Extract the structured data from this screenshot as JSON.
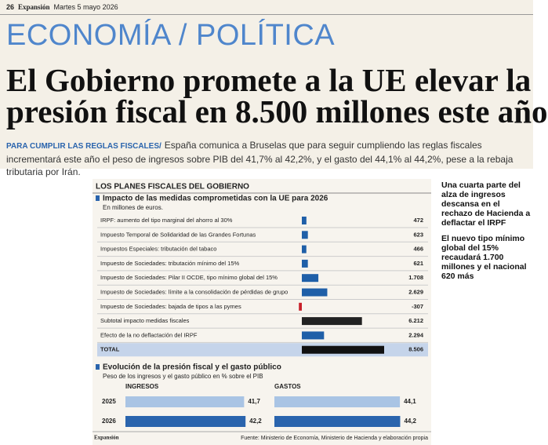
{
  "masthead": {
    "page": "26",
    "paper": "Expansión",
    "date": "Martes 5 mayo 2026"
  },
  "section": "ECONOMÍA / POLÍTICA",
  "headline": [
    "El Gobierno promete a la UE elevar la",
    "presión fiscal en 8.500 millones este año"
  ],
  "subhead": {
    "kicker": "PARA CUMPLIR LAS REGLAS FISCALES/",
    "text": "España comunica a Bruselas que para seguir cumpliendo las reglas fiscales incrementará este año el peso de ingresos sobre PIB del 41,7% al 42,2%, y el gasto del 44,1% al 44,2%, pese a la rebaja tributaria por Irán."
  },
  "graphic": {
    "title": "LOS PLANES FISCALES DEL GOBIERNO",
    "credit": "Expansión",
    "source": "Fuente: Ministerio de Economía, Ministerio de Hacienda y elaboración propia"
  },
  "sidebar": [
    "Una cuarta parte del alza de ingresos descansa en el rechazo de Hacienda a deflactar el IRPF",
    "El nuevo tipo mínimo global del 15% recaudará 1.700 millones y el nacional 620 más"
  ],
  "chart_data": [
    {
      "type": "bar",
      "orientation": "horizontal",
      "title": "Impacto de las medidas comprometidas con la UE para 2026",
      "subtitle": "En millones de euros.",
      "categories": [
        "IRPF: aumento del tipo marginal del ahorro al 30%",
        "Impuesto Temporal de Solidaridad de las Grandes Fortunas",
        "Impuestos Especiales: tributación del tabaco",
        "Impuesto de Sociedades: tributación mínimo del 15%",
        "Impuesto de Sociedades: Pilar II OCDE, tipo mínimo global del 15%",
        "Impuesto de Sociedades: límite a la consolidación de pérdidas de grupo",
        "Impuesto de Sociedades: bajada de tipos a las pymes",
        "Subtotal impacto medidas fiscales",
        "Efecto de la no deflactación del IRPF",
        "TOTAL"
      ],
      "values": [
        472,
        623,
        466,
        621,
        1708,
        2629,
        -307,
        6212,
        2294,
        8506
      ],
      "value_labels": [
        "472",
        "623",
        "466",
        "621",
        "1.708",
        "2.629",
        "-307",
        "6.212",
        "2.294",
        "8.506"
      ],
      "colors": [
        "#1f5fa8",
        "#1f5fa8",
        "#1f5fa8",
        "#1f5fa8",
        "#1f5fa8",
        "#1f5fa8",
        "#c8202a",
        "#222222",
        "#1f5fa8",
        "#111111"
      ]
    },
    {
      "type": "bar",
      "orientation": "horizontal",
      "title": "Evolución de la presión fiscal y el gasto público",
      "subtitle": "Peso de los ingresos y el gasto público en % sobre el PIB",
      "categories": [
        "2025",
        "2026"
      ],
      "colors": [
        "#a9c4e4",
        "#2a64ad"
      ],
      "series": [
        {
          "name": "INGRESOS",
          "values": [
            41.7,
            42.2
          ],
          "value_labels": [
            "41,7",
            "42,2"
          ]
        },
        {
          "name": "GASTOS",
          "values": [
            44.1,
            44.2
          ],
          "value_labels": [
            "44,1",
            "44,2"
          ]
        }
      ]
    }
  ]
}
